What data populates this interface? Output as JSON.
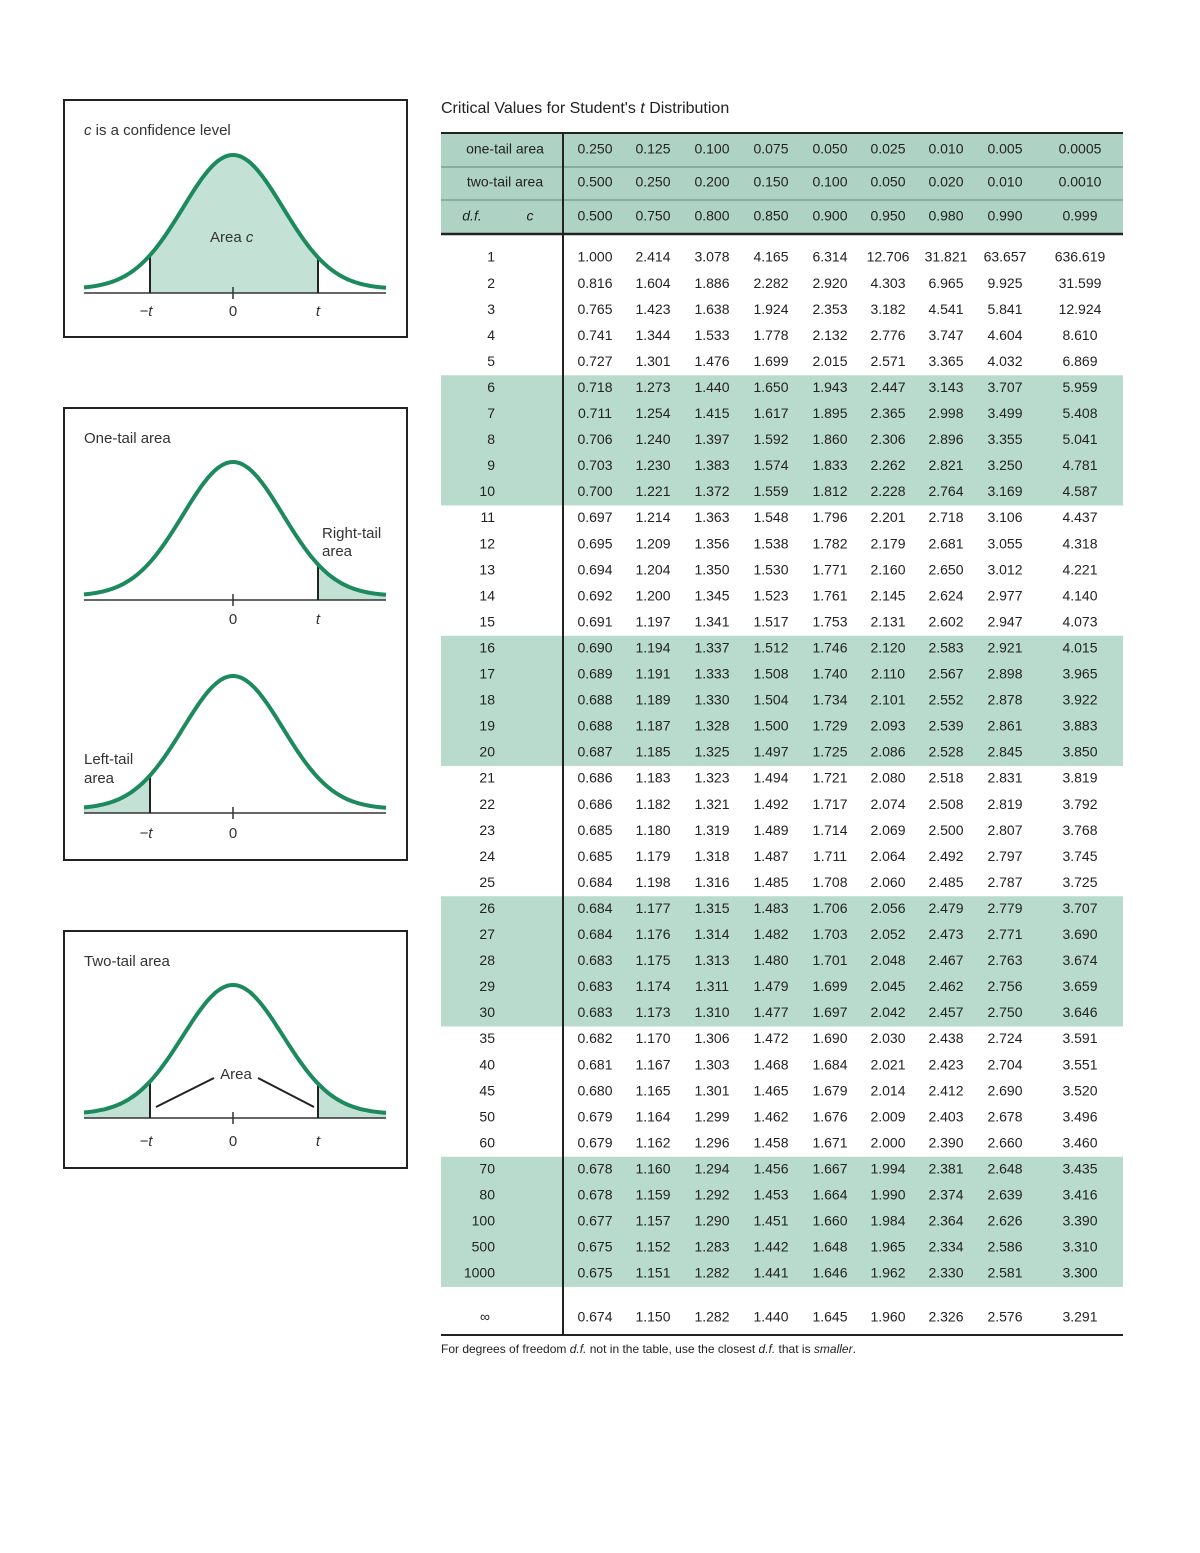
{
  "title": {
    "before": "Critical Values for Student's ",
    "var": "t",
    "after": " Distribution"
  },
  "panels": {
    "confidence": {
      "title_var": "c",
      "title_rest": " is a confidence level",
      "area": "Area ",
      "area_var": "c",
      "neg_t": "−t",
      "zero": "0",
      "t": "t"
    },
    "one_tail": {
      "title": "One-tail area",
      "right_1": "Right-tail",
      "right_2": "area",
      "zero": "0",
      "t": "t",
      "left_1": "Left-tail",
      "left_2": "area",
      "neg_t": "−t",
      "zero_2": "0"
    },
    "two_tail": {
      "title": "Two-tail area",
      "area": "Area",
      "neg_t": "−t",
      "zero": "0",
      "t": "t"
    }
  },
  "table": {
    "header_rows": [
      [
        "one-tail area",
        "0.250",
        "0.125",
        "0.100",
        "0.075",
        "0.050",
        "0.025",
        "0.010",
        "0.005",
        "0.0005"
      ],
      [
        "two-tail area",
        "0.500",
        "0.250",
        "0.200",
        "0.150",
        "0.100",
        "0.050",
        "0.020",
        "0.010",
        "0.0010"
      ],
      [
        "d.f.",
        "c",
        "0.500",
        "0.750",
        "0.800",
        "0.850",
        "0.900",
        "0.950",
        "0.980",
        "0.990",
        "0.999"
      ]
    ],
    "rows": [
      [
        "1",
        "1.000",
        "2.414",
        "3.078",
        "4.165",
        "6.314",
        "12.706",
        "31.821",
        "63.657",
        "636.619"
      ],
      [
        "2",
        "0.816",
        "1.604",
        "1.886",
        "2.282",
        "2.920",
        "4.303",
        "6.965",
        "9.925",
        "31.599"
      ],
      [
        "3",
        "0.765",
        "1.423",
        "1.638",
        "1.924",
        "2.353",
        "3.182",
        "4.541",
        "5.841",
        "12.924"
      ],
      [
        "4",
        "0.741",
        "1.344",
        "1.533",
        "1.778",
        "2.132",
        "2.776",
        "3.747",
        "4.604",
        "8.610"
      ],
      [
        "5",
        "0.727",
        "1.301",
        "1.476",
        "1.699",
        "2.015",
        "2.571",
        "3.365",
        "4.032",
        "6.869"
      ],
      [
        "6",
        "0.718",
        "1.273",
        "1.440",
        "1.650",
        "1.943",
        "2.447",
        "3.143",
        "3.707",
        "5.959"
      ],
      [
        "7",
        "0.711",
        "1.254",
        "1.415",
        "1.617",
        "1.895",
        "2.365",
        "2.998",
        "3.499",
        "5.408"
      ],
      [
        "8",
        "0.706",
        "1.240",
        "1.397",
        "1.592",
        "1.860",
        "2.306",
        "2.896",
        "3.355",
        "5.041"
      ],
      [
        "9",
        "0.703",
        "1.230",
        "1.383",
        "1.574",
        "1.833",
        "2.262",
        "2.821",
        "3.250",
        "4.781"
      ],
      [
        "10",
        "0.700",
        "1.221",
        "1.372",
        "1.559",
        "1.812",
        "2.228",
        "2.764",
        "3.169",
        "4.587"
      ],
      [
        "11",
        "0.697",
        "1.214",
        "1.363",
        "1.548",
        "1.796",
        "2.201",
        "2.718",
        "3.106",
        "4.437"
      ],
      [
        "12",
        "0.695",
        "1.209",
        "1.356",
        "1.538",
        "1.782",
        "2.179",
        "2.681",
        "3.055",
        "4.318"
      ],
      [
        "13",
        "0.694",
        "1.204",
        "1.350",
        "1.530",
        "1.771",
        "2.160",
        "2.650",
        "3.012",
        "4.221"
      ],
      [
        "14",
        "0.692",
        "1.200",
        "1.345",
        "1.523",
        "1.761",
        "2.145",
        "2.624",
        "2.977",
        "4.140"
      ],
      [
        "15",
        "0.691",
        "1.197",
        "1.341",
        "1.517",
        "1.753",
        "2.131",
        "2.602",
        "2.947",
        "4.073"
      ],
      [
        "16",
        "0.690",
        "1.194",
        "1.337",
        "1.512",
        "1.746",
        "2.120",
        "2.583",
        "2.921",
        "4.015"
      ],
      [
        "17",
        "0.689",
        "1.191",
        "1.333",
        "1.508",
        "1.740",
        "2.110",
        "2.567",
        "2.898",
        "3.965"
      ],
      [
        "18",
        "0.688",
        "1.189",
        "1.330",
        "1.504",
        "1.734",
        "2.101",
        "2.552",
        "2.878",
        "3.922"
      ],
      [
        "19",
        "0.688",
        "1.187",
        "1.328",
        "1.500",
        "1.729",
        "2.093",
        "2.539",
        "2.861",
        "3.883"
      ],
      [
        "20",
        "0.687",
        "1.185",
        "1.325",
        "1.497",
        "1.725",
        "2.086",
        "2.528",
        "2.845",
        "3.850"
      ],
      [
        "21",
        "0.686",
        "1.183",
        "1.323",
        "1.494",
        "1.721",
        "2.080",
        "2.518",
        "2.831",
        "3.819"
      ],
      [
        "22",
        "0.686",
        "1.182",
        "1.321",
        "1.492",
        "1.717",
        "2.074",
        "2.508",
        "2.819",
        "3.792"
      ],
      [
        "23",
        "0.685",
        "1.180",
        "1.319",
        "1.489",
        "1.714",
        "2.069",
        "2.500",
        "2.807",
        "3.768"
      ],
      [
        "24",
        "0.685",
        "1.179",
        "1.318",
        "1.487",
        "1.711",
        "2.064",
        "2.492",
        "2.797",
        "3.745"
      ],
      [
        "25",
        "0.684",
        "1.198",
        "1.316",
        "1.485",
        "1.708",
        "2.060",
        "2.485",
        "2.787",
        "3.725"
      ],
      [
        "26",
        "0.684",
        "1.177",
        "1.315",
        "1.483",
        "1.706",
        "2.056",
        "2.479",
        "2.779",
        "3.707"
      ],
      [
        "27",
        "0.684",
        "1.176",
        "1.314",
        "1.482",
        "1.703",
        "2.052",
        "2.473",
        "2.771",
        "3.690"
      ],
      [
        "28",
        "0.683",
        "1.175",
        "1.313",
        "1.480",
        "1.701",
        "2.048",
        "2.467",
        "2.763",
        "3.674"
      ],
      [
        "29",
        "0.683",
        "1.174",
        "1.311",
        "1.479",
        "1.699",
        "2.045",
        "2.462",
        "2.756",
        "3.659"
      ],
      [
        "30",
        "0.683",
        "1.173",
        "1.310",
        "1.477",
        "1.697",
        "2.042",
        "2.457",
        "2.750",
        "3.646"
      ],
      [
        "35",
        "0.682",
        "1.170",
        "1.306",
        "1.472",
        "1.690",
        "2.030",
        "2.438",
        "2.724",
        "3.591"
      ],
      [
        "40",
        "0.681",
        "1.167",
        "1.303",
        "1.468",
        "1.684",
        "2.021",
        "2.423",
        "2.704",
        "3.551"
      ],
      [
        "45",
        "0.680",
        "1.165",
        "1.301",
        "1.465",
        "1.679",
        "2.014",
        "2.412",
        "2.690",
        "3.520"
      ],
      [
        "50",
        "0.679",
        "1.164",
        "1.299",
        "1.462",
        "1.676",
        "2.009",
        "2.403",
        "2.678",
        "3.496"
      ],
      [
        "60",
        "0.679",
        "1.162",
        "1.296",
        "1.458",
        "1.671",
        "2.000",
        "2.390",
        "2.660",
        "3.460"
      ],
      [
        "70",
        "0.678",
        "1.160",
        "1.294",
        "1.456",
        "1.667",
        "1.994",
        "2.381",
        "2.648",
        "3.435"
      ],
      [
        "80",
        "0.678",
        "1.159",
        "1.292",
        "1.453",
        "1.664",
        "1.990",
        "2.374",
        "2.639",
        "3.416"
      ],
      [
        "100",
        "0.677",
        "1.157",
        "1.290",
        "1.451",
        "1.660",
        "1.984",
        "2.364",
        "2.626",
        "3.390"
      ],
      [
        "500",
        "0.675",
        "1.152",
        "1.283",
        "1.442",
        "1.648",
        "1.965",
        "2.334",
        "2.586",
        "3.310"
      ],
      [
        "1000",
        "0.675",
        "1.151",
        "1.282",
        "1.441",
        "1.646",
        "1.962",
        "2.330",
        "2.581",
        "3.300"
      ]
    ],
    "infinity_row": [
      "∞",
      "0.674",
      "1.150",
      "1.282",
      "1.440",
      "1.645",
      "1.960",
      "2.326",
      "2.576",
      "3.291"
    ],
    "footnote": [
      "For degrees of freedom ",
      "d.f.",
      " not in the table, use the closest ",
      "d.f.",
      " that is ",
      "smaller",
      "."
    ]
  }
}
